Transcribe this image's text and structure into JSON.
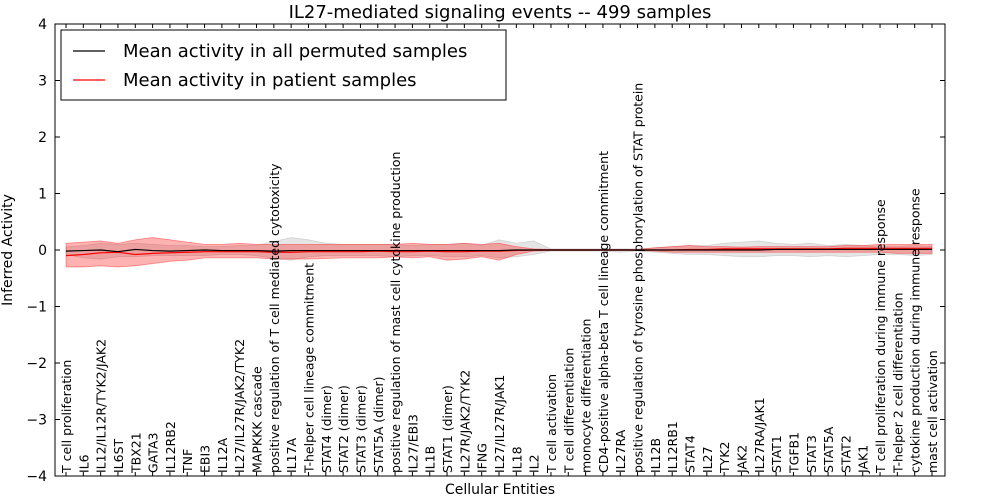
{
  "chart_data": {
    "type": "line",
    "title": "IL27-mediated signaling events -- 499 samples",
    "xlabel": "Cellular Entities",
    "ylabel": "Inferred Activity",
    "ylim": [
      -4,
      4
    ],
    "yticks": [
      -4,
      -3,
      -2,
      -1,
      0,
      1,
      2,
      3,
      4
    ],
    "ytick_labels": [
      "−4",
      "−3",
      "−2",
      "−1",
      "0",
      "1",
      "2",
      "3",
      "4"
    ],
    "grid": false,
    "legend_position": "top-left",
    "categories": [
      "T cell proliferation",
      "IL6",
      "IL12/IL12R/TYK2/JAK2",
      "IL6ST",
      "TBX21",
      "GATA3",
      "IL12RB2",
      "TNF",
      "EBI3",
      "IL12A",
      "IL27/IL27R/JAK2/TYK2",
      "MAPKKK cascade",
      "positive regulation of T cell mediated cytotoxicity",
      "IL17A",
      "T-helper cell lineage commitment",
      "STAT4 (dimer)",
      "STAT2 (dimer)",
      "STAT3 (dimer)",
      "STAT5A (dimer)",
      "positive regulation of mast cell cytokine production",
      "IL27/EBI3",
      "IL1B",
      "STAT1 (dimer)",
      "IL27R/JAK2/TYK2",
      "IFNG",
      "IL27/IL27R/JAK1",
      "IL18",
      "IL2",
      "T cell activation",
      "T cell differentiation",
      "monocyte differentiation",
      "CD4-positive alpha-beta T cell lineage commitment",
      "IL27RA",
      "positive regulation of tyrosine phosphorylation of STAT protein",
      "IL12B",
      "IL12RB1",
      "STAT4",
      "IL27",
      "TYK2",
      "JAK2",
      "IL27RA/JAK1",
      "STAT1",
      "TGFB1",
      "STAT3",
      "STAT5A",
      "STAT2",
      "JAK1",
      "T cell proliferation during immune response",
      "T-helper 2 cell differentiation",
      "cytokine production during immune response",
      "mast cell activation"
    ],
    "series": [
      {
        "name": "Mean activity in all permuted samples",
        "color": "#000000",
        "values": [
          -0.02,
          -0.01,
          0.0,
          -0.03,
          0.01,
          -0.01,
          -0.02,
          -0.01,
          0.0,
          -0.01,
          -0.01,
          -0.01,
          -0.02,
          -0.01,
          -0.01,
          -0.01,
          -0.01,
          -0.01,
          -0.01,
          -0.01,
          -0.01,
          -0.01,
          -0.01,
          -0.01,
          -0.01,
          -0.01,
          0.0,
          0.0,
          0.0,
          0.0,
          0.0,
          0.0,
          0.0,
          0.0,
          0.0,
          0.0,
          0.0,
          0.0,
          0.0,
          0.0,
          0.0,
          0.01,
          0.01,
          0.01,
          0.01,
          0.01,
          0.01,
          0.01,
          0.01,
          0.01,
          0.01
        ],
        "band": {
          "color": "#999999",
          "upper": [
            0.05,
            0.08,
            0.12,
            0.1,
            0.12,
            0.1,
            0.08,
            0.08,
            0.06,
            0.06,
            0.08,
            0.08,
            0.15,
            0.22,
            0.18,
            0.12,
            0.1,
            0.1,
            0.1,
            0.1,
            0.08,
            0.1,
            0.1,
            0.12,
            0.08,
            0.18,
            0.12,
            0.16,
            0.02,
            0.02,
            0.02,
            0.02,
            0.02,
            0.02,
            0.04,
            0.06,
            0.08,
            0.08,
            0.12,
            0.14,
            0.16,
            0.12,
            0.1,
            0.12,
            0.08,
            0.1,
            0.08,
            0.06,
            0.06,
            0.08,
            0.06
          ],
          "lower": [
            -0.08,
            -0.14,
            -0.16,
            -0.12,
            -0.12,
            -0.1,
            -0.1,
            -0.1,
            -0.1,
            -0.08,
            -0.08,
            -0.1,
            -0.15,
            -0.18,
            -0.12,
            -0.1,
            -0.1,
            -0.1,
            -0.1,
            -0.12,
            -0.1,
            -0.1,
            -0.12,
            -0.12,
            -0.1,
            -0.14,
            -0.12,
            -0.08,
            -0.02,
            -0.02,
            -0.02,
            -0.02,
            -0.04,
            -0.02,
            -0.04,
            -0.06,
            -0.08,
            -0.08,
            -0.1,
            -0.12,
            -0.12,
            -0.1,
            -0.1,
            -0.12,
            -0.1,
            -0.12,
            -0.1,
            -0.08,
            -0.08,
            -0.1,
            -0.08
          ]
        }
      },
      {
        "name": "Mean activity in patient samples",
        "color": "#ff0000",
        "values": [
          -0.1,
          -0.08,
          -0.05,
          -0.04,
          -0.08,
          -0.06,
          -0.05,
          -0.04,
          -0.03,
          -0.03,
          -0.03,
          -0.03,
          -0.04,
          -0.04,
          -0.03,
          -0.03,
          -0.03,
          -0.03,
          -0.02,
          -0.03,
          -0.03,
          -0.02,
          -0.03,
          -0.03,
          -0.02,
          -0.02,
          -0.01,
          0.0,
          0.0,
          0.0,
          0.0,
          0.0,
          0.0,
          0.0,
          0.0,
          0.0,
          0.01,
          0.01,
          0.02,
          0.02,
          0.02,
          0.02,
          0.02,
          0.02,
          0.02,
          0.03,
          0.03,
          0.03,
          0.03,
          0.03,
          0.03
        ],
        "band": {
          "color": "#ff0000",
          "upper": [
            0.12,
            0.14,
            0.16,
            0.12,
            0.18,
            0.22,
            0.18,
            0.14,
            0.1,
            0.1,
            0.12,
            0.1,
            0.1,
            0.1,
            0.1,
            0.1,
            0.1,
            0.1,
            0.1,
            0.1,
            0.12,
            0.1,
            0.1,
            0.12,
            0.1,
            0.12,
            0.06,
            0.02,
            0.01,
            0.01,
            0.01,
            0.01,
            0.01,
            0.01,
            0.04,
            0.06,
            0.08,
            0.06,
            0.06,
            0.05,
            0.06,
            0.06,
            0.06,
            0.06,
            0.06,
            0.08,
            0.08,
            0.1,
            0.1,
            0.1,
            0.1
          ],
          "lower": [
            -0.3,
            -0.3,
            -0.28,
            -0.3,
            -0.28,
            -0.24,
            -0.2,
            -0.18,
            -0.14,
            -0.14,
            -0.14,
            -0.14,
            -0.16,
            -0.16,
            -0.16,
            -0.15,
            -0.14,
            -0.14,
            -0.14,
            -0.12,
            -0.14,
            -0.12,
            -0.18,
            -0.16,
            -0.12,
            -0.18,
            -0.08,
            -0.02,
            -0.01,
            -0.01,
            -0.01,
            -0.01,
            -0.01,
            -0.01,
            -0.02,
            -0.04,
            -0.04,
            -0.04,
            -0.04,
            -0.04,
            -0.04,
            -0.04,
            -0.04,
            -0.04,
            -0.04,
            -0.04,
            -0.04,
            -0.04,
            -0.06,
            -0.06,
            -0.06
          ]
        }
      }
    ]
  }
}
